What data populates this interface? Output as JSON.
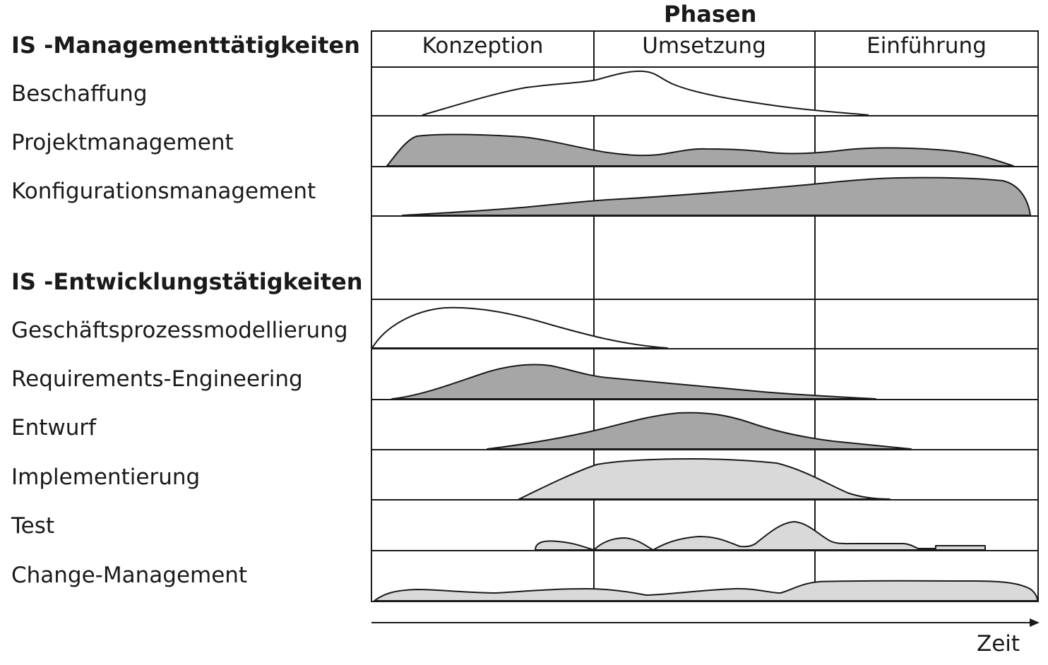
{
  "diagram": {
    "phases_title": "Phasen",
    "phases": [
      "Konzeption",
      "Umsetzung",
      "Einführung"
    ],
    "axis_label": "Zeit",
    "groups": [
      {
        "heading": "IS -Managementtätigkeiten",
        "activities": [
          "Beschaffung",
          "Projektmanagement",
          "Konfigurationsmanagement"
        ]
      },
      {
        "heading": "IS -Entwicklungstätigkeiten",
        "activities": [
          "Geschäftsprozessmodellierung",
          "Requirements-Engineering",
          "Entwurf",
          "Implementierung",
          "Test",
          "Change-Management"
        ]
      }
    ],
    "colors": {
      "line": "#1a1a1a",
      "fill_dark": "#a6a6a6",
      "fill_light": "#d9d9d9",
      "fill_none": "#ffffff"
    }
  }
}
